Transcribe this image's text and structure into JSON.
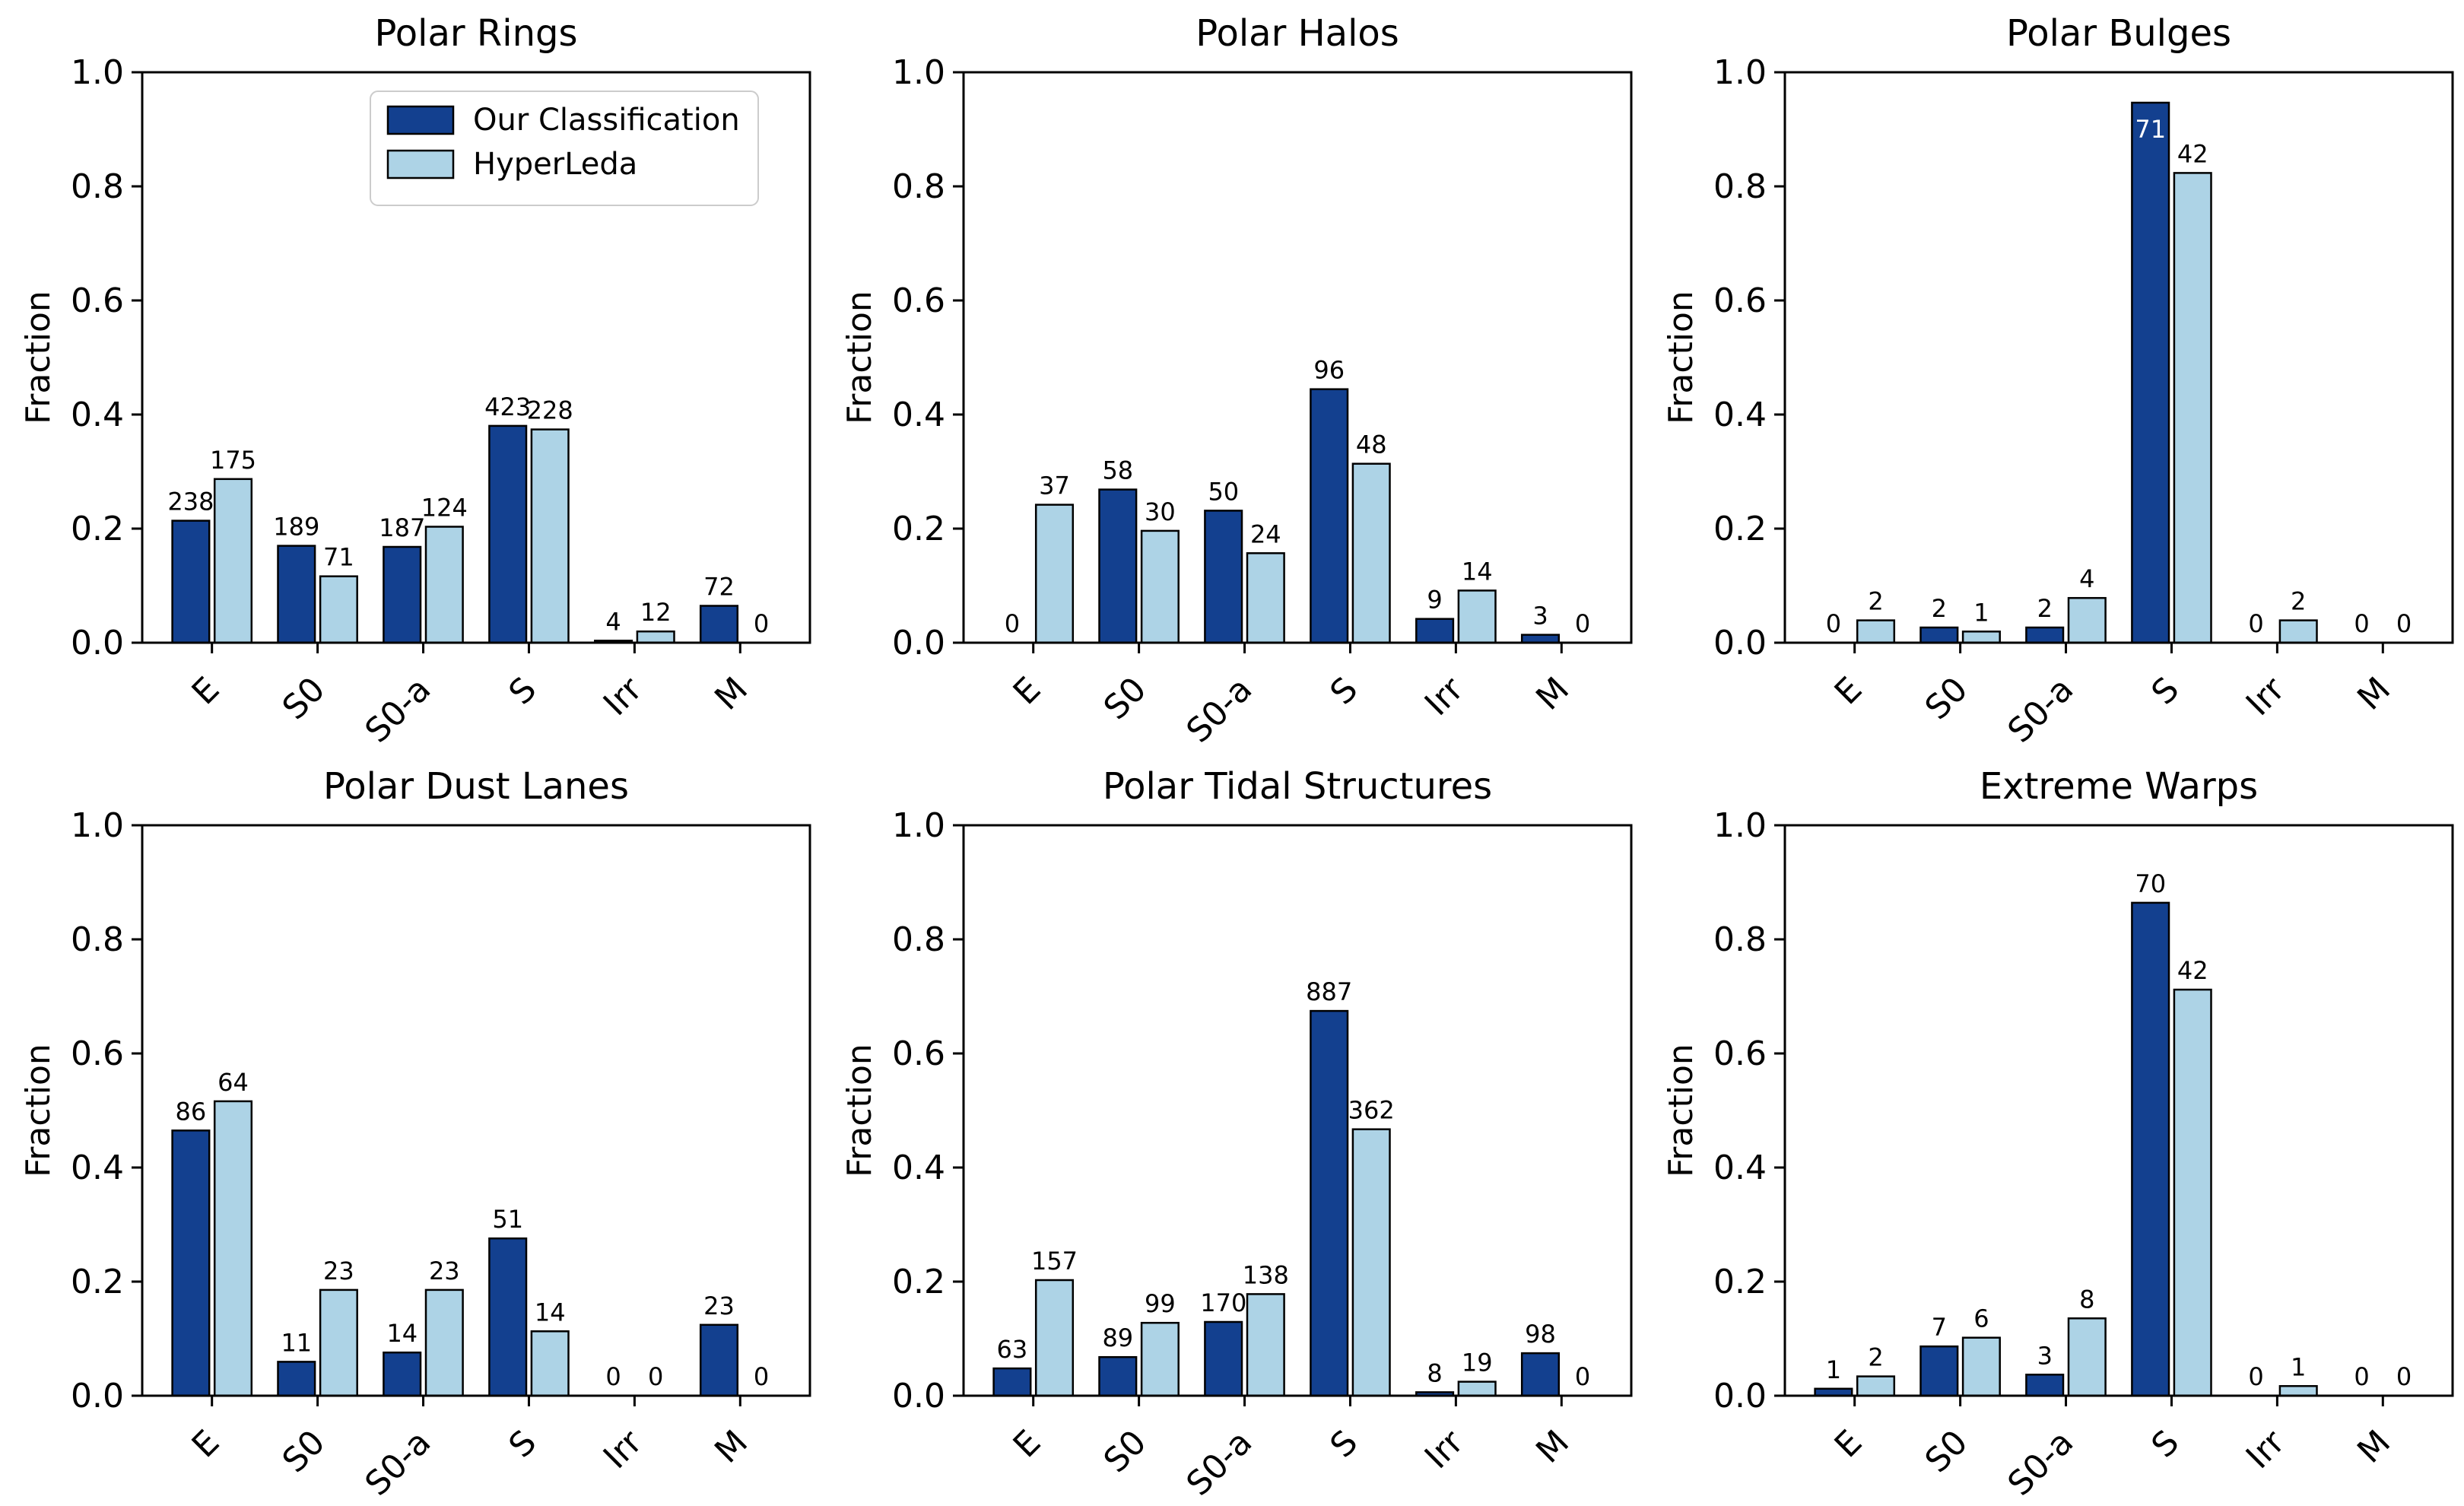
{
  "figure": {
    "background": "#ffffff",
    "ylabel": "Fraction",
    "y_ticks": [
      "0.0",
      "0.2",
      "0.4",
      "0.6",
      "0.8",
      "1.0"
    ],
    "categories": [
      "E",
      "S0",
      "S0-a",
      "S",
      "Irr",
      "M"
    ],
    "series_colors": [
      "#13408f",
      "#ADD3E6"
    ],
    "bar_edge_color": "#000000",
    "label_color": "#000000",
    "inside_label_color": "#ffffff",
    "legend": {
      "items": [
        {
          "label": "Our Classification",
          "color": "#13408f"
        },
        {
          "label": "HyperLeda",
          "color": "#ADD3E6"
        }
      ]
    }
  },
  "chart_data": [
    {
      "type": "bar",
      "title": "Polar Rings",
      "xlabel": "",
      "ylabel": "Fraction",
      "ylim": [
        0,
        1
      ],
      "grid": false,
      "legend_position": "upper right",
      "show_legend": true,
      "categories": [
        "E",
        "S0",
        "S0-a",
        "S",
        "Irr",
        "M"
      ],
      "series": [
        {
          "name": "Our Classification",
          "counts": [
            238,
            189,
            187,
            423,
            4,
            72
          ],
          "fractions": [
            0.2138,
            0.1698,
            0.168,
            0.3801,
            0.0036,
            0.0647
          ]
        },
        {
          "name": "HyperLeda",
          "counts": [
            175,
            71,
            124,
            228,
            12,
            0
          ],
          "fractions": [
            0.2869,
            0.1164,
            0.2033,
            0.3738,
            0.0197,
            0
          ]
        }
      ]
    },
    {
      "type": "bar",
      "title": "Polar Halos",
      "xlabel": "",
      "ylabel": "Fraction",
      "ylim": [
        0,
        1
      ],
      "grid": false,
      "show_legend": false,
      "categories": [
        "E",
        "S0",
        "S0-a",
        "S",
        "Irr",
        "M"
      ],
      "series": [
        {
          "name": "Our Classification",
          "counts": [
            0,
            58,
            50,
            96,
            9,
            3
          ],
          "fractions": [
            0,
            0.2685,
            0.2315,
            0.4444,
            0.0417,
            0.0139
          ]
        },
        {
          "name": "HyperLeda",
          "counts": [
            37,
            30,
            24,
            48,
            14,
            0
          ],
          "fractions": [
            0.2418,
            0.1961,
            0.1569,
            0.3137,
            0.0915,
            0
          ]
        }
      ]
    },
    {
      "type": "bar",
      "title": "Polar Bulges",
      "xlabel": "",
      "ylabel": "Fraction",
      "ylim": [
        0,
        1
      ],
      "grid": false,
      "show_legend": false,
      "categories": [
        "E",
        "S0",
        "S0-a",
        "S",
        "Irr",
        "M"
      ],
      "series": [
        {
          "name": "Our Classification",
          "counts": [
            0,
            2,
            2,
            71,
            0,
            0
          ],
          "fractions": [
            0,
            0.0267,
            0.0267,
            0.9467,
            0,
            0
          ]
        },
        {
          "name": "HyperLeda",
          "counts": [
            2,
            1,
            4,
            42,
            2,
            0
          ],
          "fractions": [
            0.0392,
            0.0196,
            0.0784,
            0.8235,
            0.0392,
            0
          ]
        }
      ]
    },
    {
      "type": "bar",
      "title": "Polar Dust Lanes",
      "xlabel": "",
      "ylabel": "Fraction",
      "ylim": [
        0,
        1
      ],
      "grid": false,
      "show_legend": false,
      "categories": [
        "E",
        "S0",
        "S0-a",
        "S",
        "Irr",
        "M"
      ],
      "series": [
        {
          "name": "Our Classification",
          "counts": [
            86,
            11,
            14,
            51,
            0,
            23
          ],
          "fractions": [
            0.4649,
            0.0595,
            0.0757,
            0.2757,
            0,
            0.1243
          ]
        },
        {
          "name": "HyperLeda",
          "counts": [
            64,
            23,
            23,
            14,
            0,
            0
          ],
          "fractions": [
            0.5161,
            0.1855,
            0.1855,
            0.1129,
            0,
            0
          ]
        }
      ]
    },
    {
      "type": "bar",
      "title": "Polar Tidal Structures",
      "xlabel": "",
      "ylabel": "Fraction",
      "ylim": [
        0,
        1
      ],
      "grid": false,
      "show_legend": false,
      "categories": [
        "E",
        "S0",
        "S0-a",
        "S",
        "Irr",
        "M"
      ],
      "series": [
        {
          "name": "Our Classification",
          "counts": [
            63,
            89,
            170,
            887,
            8,
            98
          ],
          "fractions": [
            0.0479,
            0.0677,
            0.1293,
            0.6745,
            0.0061,
            0.0745
          ]
        },
        {
          "name": "HyperLeda",
          "counts": [
            157,
            99,
            138,
            362,
            19,
            0
          ],
          "fractions": [
            0.2026,
            0.1277,
            0.1781,
            0.4671,
            0.0245,
            0
          ]
        }
      ]
    },
    {
      "type": "bar",
      "title": "Extreme Warps",
      "xlabel": "",
      "ylabel": "Fraction",
      "ylim": [
        0,
        1
      ],
      "grid": false,
      "show_legend": false,
      "categories": [
        "E",
        "S0",
        "S0-a",
        "S",
        "Irr",
        "M"
      ],
      "series": [
        {
          "name": "Our Classification",
          "counts": [
            1,
            7,
            3,
            70,
            0,
            0
          ],
          "fractions": [
            0.0123,
            0.0864,
            0.037,
            0.8642,
            0,
            0
          ]
        },
        {
          "name": "HyperLeda",
          "counts": [
            2,
            6,
            8,
            42,
            1,
            0
          ],
          "fractions": [
            0.0339,
            0.1017,
            0.1356,
            0.7119,
            0.0169,
            0
          ]
        }
      ]
    }
  ]
}
